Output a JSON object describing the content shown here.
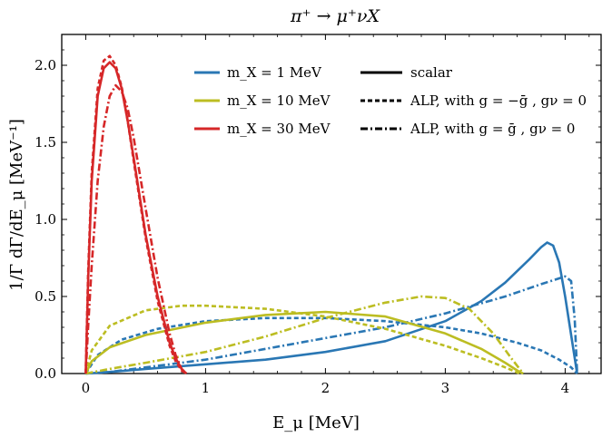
{
  "chart_data": {
    "type": "line",
    "title": "π⁺ → μ⁺νX",
    "xlabel": "E_μ  [MeV]",
    "ylabel": "1/Γ dΓ/dE_μ  [MeV⁻¹]",
    "xlim": [
      -0.2,
      4.3
    ],
    "ylim": [
      0,
      2.2
    ],
    "xticks": [
      0,
      1,
      2,
      3,
      4
    ],
    "yticks": [
      0.0,
      0.5,
      1.0,
      1.5,
      2.0
    ],
    "xtick_labels": [
      "0",
      "1",
      "2",
      "3",
      "4"
    ],
    "ytick_labels": [
      "0.0",
      "0.5",
      "1.0",
      "1.5",
      "2.0"
    ],
    "grid": false,
    "legend": {
      "colors": [
        {
          "label": "m_X = 1 MeV",
          "color": "#2a77b4"
        },
        {
          "label": "m_X = 10 MeV",
          "color": "#bcbd22"
        },
        {
          "label": "m_X = 30 MeV",
          "color": "#d62728"
        }
      ],
      "styles": [
        {
          "label": "scalar",
          "dash": "solid"
        },
        {
          "label": "ALP,  with  g = −ḡ ,   gν = 0",
          "dash": "dashed"
        },
        {
          "label": "ALP,  with  g = ḡ ,   gν = 0",
          "dash": "dashdot"
        }
      ]
    },
    "series": [
      {
        "color": "#2a77b4",
        "dash": "solid",
        "x": [
          0,
          0.2,
          0.5,
          1.0,
          1.5,
          2.0,
          2.5,
          3.0,
          3.3,
          3.5,
          3.7,
          3.8,
          3.85,
          3.9,
          3.95,
          4.0,
          4.05,
          4.08,
          4.1
        ],
        "y": [
          0,
          0.01,
          0.03,
          0.06,
          0.09,
          0.14,
          0.21,
          0.34,
          0.47,
          0.59,
          0.74,
          0.82,
          0.85,
          0.83,
          0.72,
          0.5,
          0.25,
          0.1,
          0
        ]
      },
      {
        "color": "#2a77b4",
        "dash": "dashed",
        "x": [
          0,
          0.1,
          0.3,
          0.6,
          1.0,
          1.5,
          2.0,
          2.5,
          3.0,
          3.3,
          3.6,
          3.8,
          3.95,
          4.05,
          4.1
        ],
        "y": [
          0,
          0.12,
          0.22,
          0.29,
          0.34,
          0.36,
          0.36,
          0.34,
          0.3,
          0.26,
          0.2,
          0.15,
          0.09,
          0.04,
          0
        ]
      },
      {
        "color": "#2a77b4",
        "dash": "dashdot",
        "x": [
          0,
          0.2,
          0.5,
          1.0,
          1.5,
          2.0,
          2.5,
          3.0,
          3.5,
          3.8,
          4.0,
          4.05,
          4.08,
          4.1
        ],
        "y": [
          0,
          0.01,
          0.04,
          0.09,
          0.16,
          0.23,
          0.3,
          0.39,
          0.5,
          0.58,
          0.63,
          0.6,
          0.35,
          0
        ]
      },
      {
        "color": "#bcbd22",
        "dash": "solid",
        "x": [
          0,
          0.05,
          0.2,
          0.5,
          1.0,
          1.5,
          2.0,
          2.5,
          3.0,
          3.3,
          3.5,
          3.6,
          3.65
        ],
        "y": [
          0,
          0.08,
          0.17,
          0.25,
          0.33,
          0.38,
          0.4,
          0.37,
          0.26,
          0.16,
          0.07,
          0.02,
          0
        ]
      },
      {
        "color": "#bcbd22",
        "dash": "dashed",
        "x": [
          0,
          0.05,
          0.2,
          0.5,
          0.8,
          1.0,
          1.5,
          2.0,
          2.5,
          3.0,
          3.3,
          3.5,
          3.62
        ],
        "y": [
          0,
          0.15,
          0.31,
          0.41,
          0.44,
          0.44,
          0.42,
          0.37,
          0.29,
          0.18,
          0.1,
          0.04,
          0
        ]
      },
      {
        "color": "#bcbd22",
        "dash": "dashdot",
        "x": [
          0,
          0.2,
          0.5,
          1.0,
          1.5,
          2.0,
          2.5,
          2.8,
          3.0,
          3.2,
          3.4,
          3.55,
          3.65
        ],
        "y": [
          0,
          0.03,
          0.07,
          0.14,
          0.24,
          0.36,
          0.46,
          0.5,
          0.49,
          0.42,
          0.26,
          0.1,
          0
        ]
      },
      {
        "color": "#d62728",
        "dash": "solid",
        "x": [
          0,
          0.02,
          0.05,
          0.1,
          0.15,
          0.2,
          0.25,
          0.3,
          0.35,
          0.4,
          0.5,
          0.6,
          0.7,
          0.75,
          0.8,
          0.84
        ],
        "y": [
          0,
          0.6,
          1.25,
          1.8,
          1.98,
          2.02,
          1.98,
          1.85,
          1.64,
          1.4,
          0.9,
          0.5,
          0.2,
          0.1,
          0.03,
          0
        ]
      },
      {
        "color": "#d62728",
        "dash": "dashed",
        "x": [
          0,
          0.02,
          0.05,
          0.1,
          0.15,
          0.2,
          0.25,
          0.3,
          0.35,
          0.4,
          0.5,
          0.6,
          0.7,
          0.75,
          0.8,
          0.84
        ],
        "y": [
          0,
          0.65,
          1.3,
          1.85,
          2.03,
          2.06,
          2.0,
          1.86,
          1.64,
          1.38,
          0.88,
          0.47,
          0.18,
          0.08,
          0.02,
          0
        ]
      },
      {
        "color": "#d62728",
        "dash": "dashdot",
        "x": [
          0,
          0.02,
          0.05,
          0.1,
          0.15,
          0.2,
          0.25,
          0.3,
          0.35,
          0.4,
          0.5,
          0.6,
          0.7,
          0.75,
          0.8,
          0.84
        ],
        "y": [
          0,
          0.3,
          0.7,
          1.25,
          1.6,
          1.8,
          1.87,
          1.83,
          1.72,
          1.53,
          1.07,
          0.62,
          0.26,
          0.12,
          0.03,
          0
        ]
      }
    ]
  }
}
